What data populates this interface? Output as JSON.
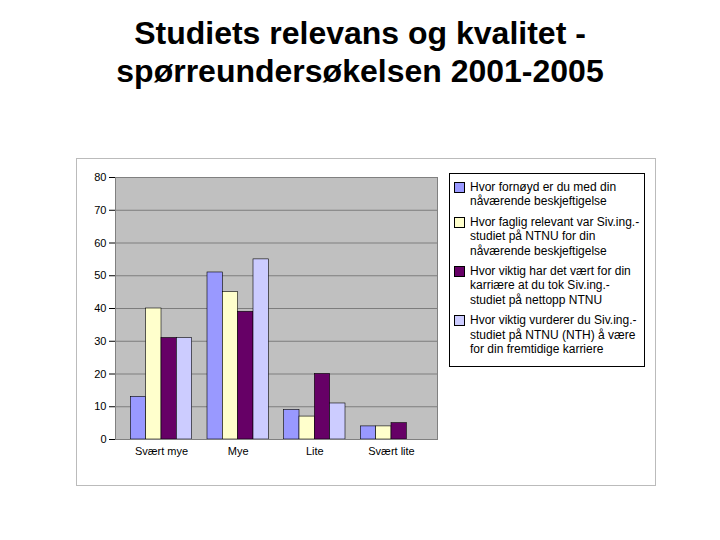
{
  "chart_data": {
    "type": "bar",
    "title": "Studiets relevans og kvalitet - spørreundersøkelsen 2001-2005",
    "categories": [
      "Svært mye",
      "Mye",
      "Lite",
      "Svært lite"
    ],
    "series": [
      {
        "name": "Hvor fornøyd er du med din nåværende beskjeftigelse",
        "color": "#9999ff",
        "values": [
          13,
          51,
          9,
          4
        ]
      },
      {
        "name": "Hvor faglig relevant var Siv.ing.-studiet på NTNU for din nåværende beskjeftigelse",
        "color": "#ffffcc",
        "values": [
          40,
          45,
          7,
          4
        ]
      },
      {
        "name": "Hvor viktig har det vært for din karriære at du tok Siv.ing.-studiet på nettopp NTNU",
        "color": "#660066",
        "values": [
          31,
          39,
          20,
          5
        ]
      },
      {
        "name": "Hvor viktig vurderer du Siv.ing.-studiet på NTNU (NTH) å være for din fremtidige karriere",
        "color": "#ccccff",
        "values": [
          31,
          55,
          11,
          0
        ]
      }
    ],
    "ylim": [
      0,
      80
    ],
    "yticks": [
      0,
      10,
      20,
      30,
      40,
      50,
      60,
      70,
      80
    ],
    "grid": true,
    "legend": "right"
  }
}
